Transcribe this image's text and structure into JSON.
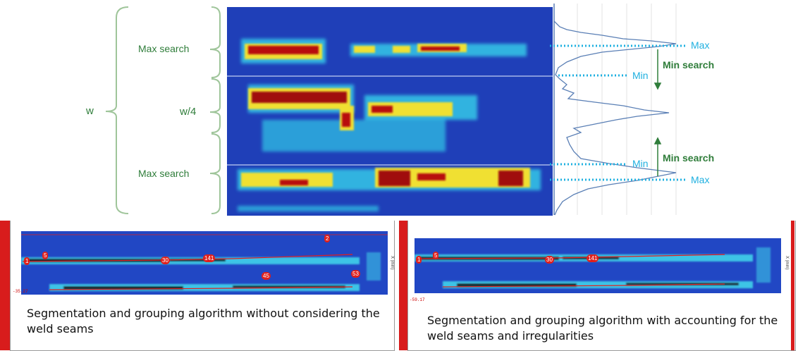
{
  "top_diagram": {
    "label_w": "w",
    "label_w4": "w/4",
    "label_max_search_top": "Max search",
    "label_max_search_bottom": "Max search",
    "label_max_top": "Max",
    "label_min_top": "Min",
    "label_min_search_top": "Min search",
    "label_min_search_bottom": "Min search",
    "label_min_bottom": "Min",
    "label_max_bottom": "Max",
    "colors": {
      "bracket": "#9fc59a",
      "label_green": "#2f7d3a",
      "label_cyan": "#1fb0e0",
      "dotted_line": "#1fb0e0",
      "profile_line": "#5a7fb5",
      "heatmap_background": "#1f3fb8"
    }
  },
  "bottom_left": {
    "caption": "Segmentation and grouping algorithm without considering the weld seams",
    "axis_value": "-35.27",
    "axis_label": "X (mm)",
    "markers": [
      "1",
      "5",
      "2",
      "30",
      "141",
      "45",
      "53"
    ]
  },
  "bottom_right": {
    "caption": "Segmentation and grouping algorithm with accounting for the weld seams and irregularities",
    "axis_value": "-59.17",
    "axis_label": "X (mm)",
    "markers": [
      "1",
      "5",
      "30",
      "141"
    ]
  }
}
